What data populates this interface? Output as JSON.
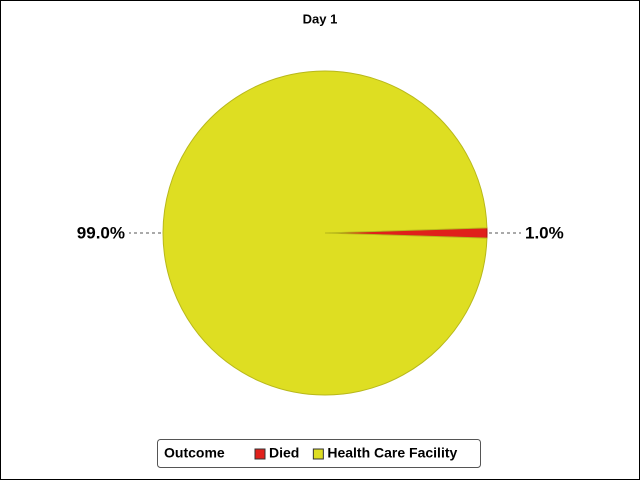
{
  "chart_data": {
    "type": "pie",
    "title": "Day 1",
    "legend_title": "Outcome",
    "categories": [
      "Died",
      "Health Care Facility"
    ],
    "values": [
      1.0,
      99.0
    ],
    "value_labels": [
      "1.0%",
      "99.0%"
    ],
    "colors": [
      "#e0201b",
      "#dede22"
    ]
  }
}
